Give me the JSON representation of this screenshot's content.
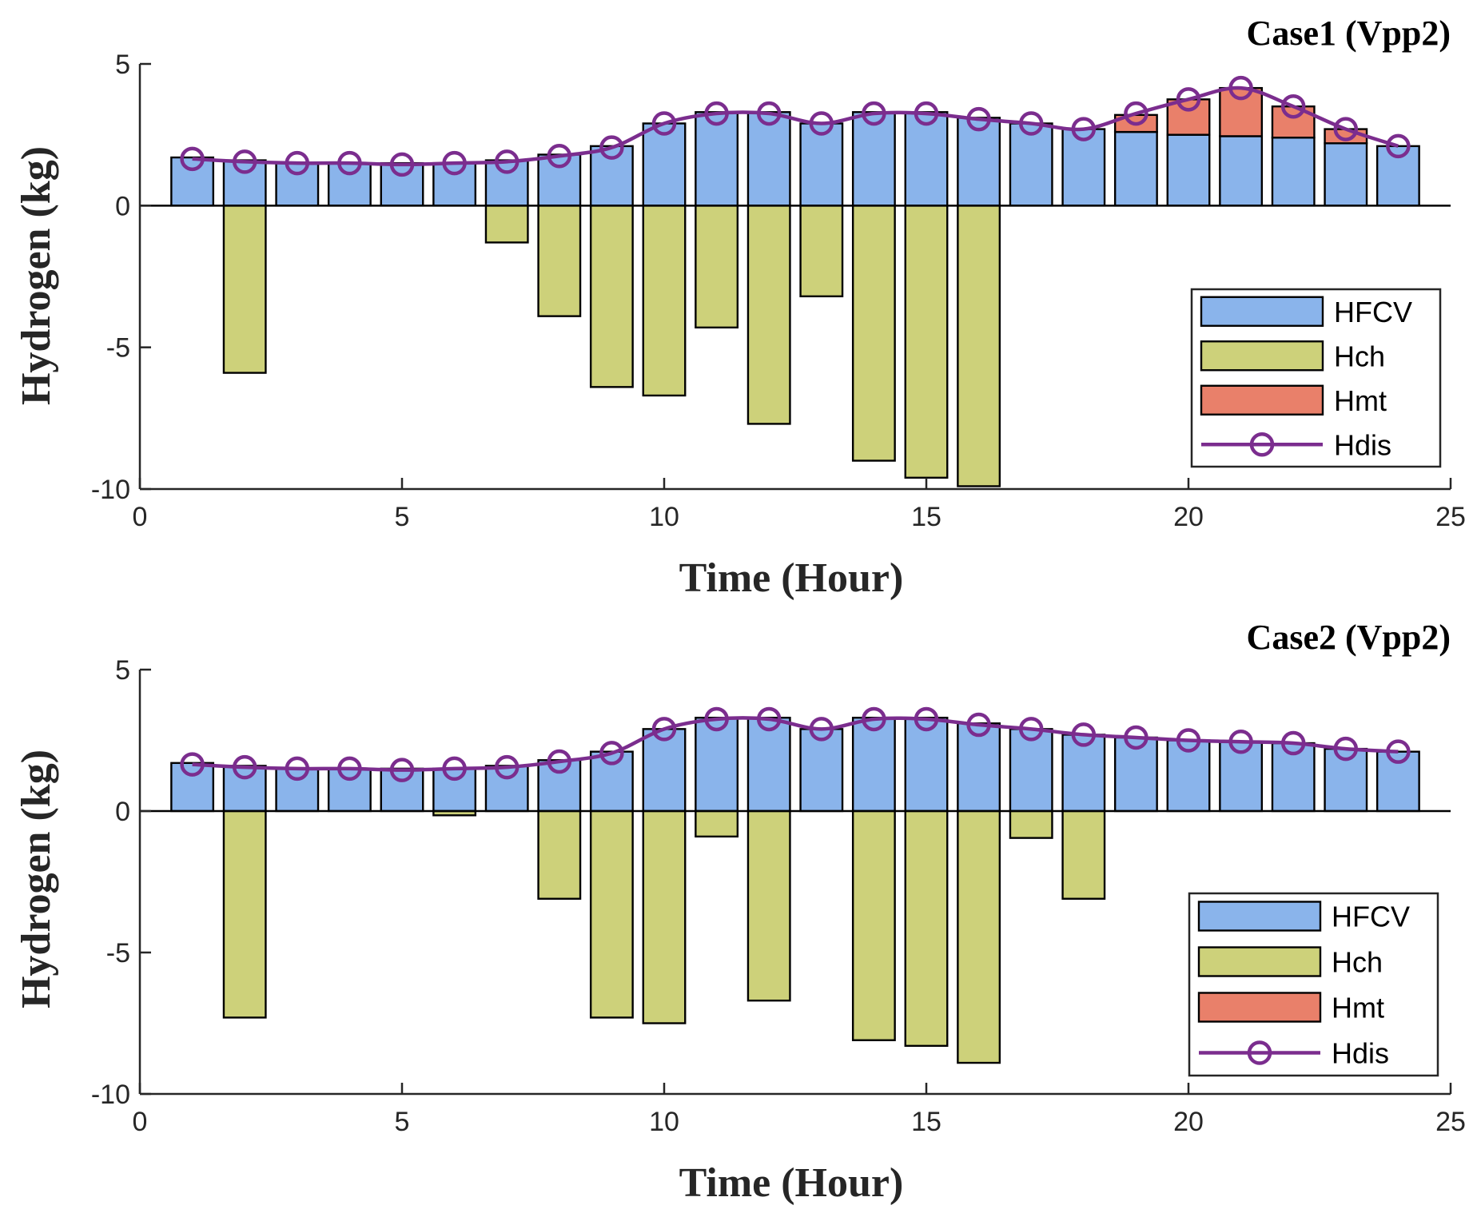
{
  "chart_data": [
    {
      "type": "bar",
      "title": "Case1 (Vpp2)",
      "xlabel": "Time (Hour)",
      "ylabel": "Hydrogen (kg)",
      "xlim": [
        0,
        25
      ],
      "ylim": [
        -10,
        5
      ],
      "xticks": [
        "0",
        "5",
        "10",
        "15",
        "20",
        "25"
      ],
      "yticks": [
        "5",
        "0",
        "-5",
        "-10"
      ],
      "legend_position": "bottom-right",
      "x": [
        1,
        2,
        3,
        4,
        5,
        6,
        7,
        8,
        9,
        10,
        11,
        12,
        13,
        14,
        15,
        16,
        17,
        18,
        19,
        20,
        21,
        22,
        23,
        24
      ],
      "series": [
        {
          "name": "HFCV",
          "kind": "bar",
          "color": "#8AB4EB",
          "values": [
            1.7,
            1.6,
            1.5,
            1.5,
            1.5,
            1.5,
            1.6,
            1.8,
            2.1,
            2.9,
            3.3,
            3.3,
            2.9,
            3.3,
            3.3,
            3.1,
            2.9,
            2.7,
            2.6,
            2.5,
            2.45,
            2.4,
            2.2,
            2.1
          ]
        },
        {
          "name": "Hch",
          "kind": "bar",
          "color": "#CDD17A",
          "values": [
            0,
            -5.9,
            0,
            0,
            0,
            0,
            -1.3,
            -3.9,
            -6.4,
            -6.7,
            -4.3,
            -7.7,
            -3.2,
            -9.0,
            -9.6,
            -9.9,
            0,
            0,
            0,
            0,
            0,
            0,
            0,
            0
          ]
        },
        {
          "name": "Hmt",
          "kind": "bar",
          "color": "#E9806A",
          "values": [
            0,
            0,
            0,
            0,
            0,
            0,
            0,
            0,
            0,
            0,
            0,
            0,
            0,
            0,
            0,
            0,
            0,
            0,
            0.6,
            1.25,
            1.7,
            1.1,
            0.5,
            0
          ]
        },
        {
          "name": "Hdis",
          "kind": "line",
          "color": "#7B2D8E",
          "values": [
            1.65,
            1.55,
            1.5,
            1.5,
            1.45,
            1.5,
            1.55,
            1.75,
            2.05,
            2.9,
            3.25,
            3.25,
            2.9,
            3.25,
            3.25,
            3.05,
            2.9,
            2.7,
            3.25,
            3.75,
            4.15,
            3.5,
            2.7,
            2.1
          ]
        }
      ]
    },
    {
      "type": "bar",
      "title": "Case2 (Vpp2)",
      "xlabel": "Time (Hour)",
      "ylabel": "Hydrogen (kg)",
      "xlim": [
        0,
        25
      ],
      "ylim": [
        -10,
        5
      ],
      "xticks": [
        "0",
        "5",
        "10",
        "15",
        "20",
        "25"
      ],
      "yticks": [
        "5",
        "0",
        "-5",
        "-10"
      ],
      "legend_position": "bottom-right",
      "x": [
        1,
        2,
        3,
        4,
        5,
        6,
        7,
        8,
        9,
        10,
        11,
        12,
        13,
        14,
        15,
        16,
        17,
        18,
        19,
        20,
        21,
        22,
        23,
        24
      ],
      "series": [
        {
          "name": "HFCV",
          "kind": "bar",
          "color": "#8AB4EB",
          "values": [
            1.7,
            1.6,
            1.5,
            1.5,
            1.5,
            1.5,
            1.6,
            1.8,
            2.1,
            2.9,
            3.3,
            3.3,
            2.9,
            3.3,
            3.3,
            3.1,
            2.9,
            2.7,
            2.6,
            2.5,
            2.45,
            2.4,
            2.2,
            2.1
          ]
        },
        {
          "name": "Hch",
          "kind": "bar",
          "color": "#CDD17A",
          "values": [
            0,
            -7.3,
            0,
            0,
            0,
            -0.15,
            0,
            -3.1,
            -7.3,
            -7.5,
            -0.9,
            -6.7,
            0,
            -8.1,
            -8.3,
            -8.9,
            -0.95,
            -3.1,
            0,
            0,
            0,
            0,
            0,
            0
          ]
        },
        {
          "name": "Hmt",
          "kind": "bar",
          "color": "#E9806A",
          "values": [
            0,
            0,
            0,
            0,
            0,
            0,
            0,
            0,
            0,
            0,
            0,
            0,
            0,
            0,
            0,
            0,
            0,
            0,
            0,
            0,
            0,
            0,
            0,
            0
          ]
        },
        {
          "name": "Hdis",
          "kind": "line",
          "color": "#7B2D8E",
          "values": [
            1.65,
            1.55,
            1.5,
            1.5,
            1.45,
            1.5,
            1.55,
            1.75,
            2.05,
            2.9,
            3.25,
            3.25,
            2.9,
            3.25,
            3.25,
            3.05,
            2.9,
            2.7,
            2.6,
            2.5,
            2.45,
            2.4,
            2.2,
            2.1
          ]
        }
      ]
    }
  ]
}
